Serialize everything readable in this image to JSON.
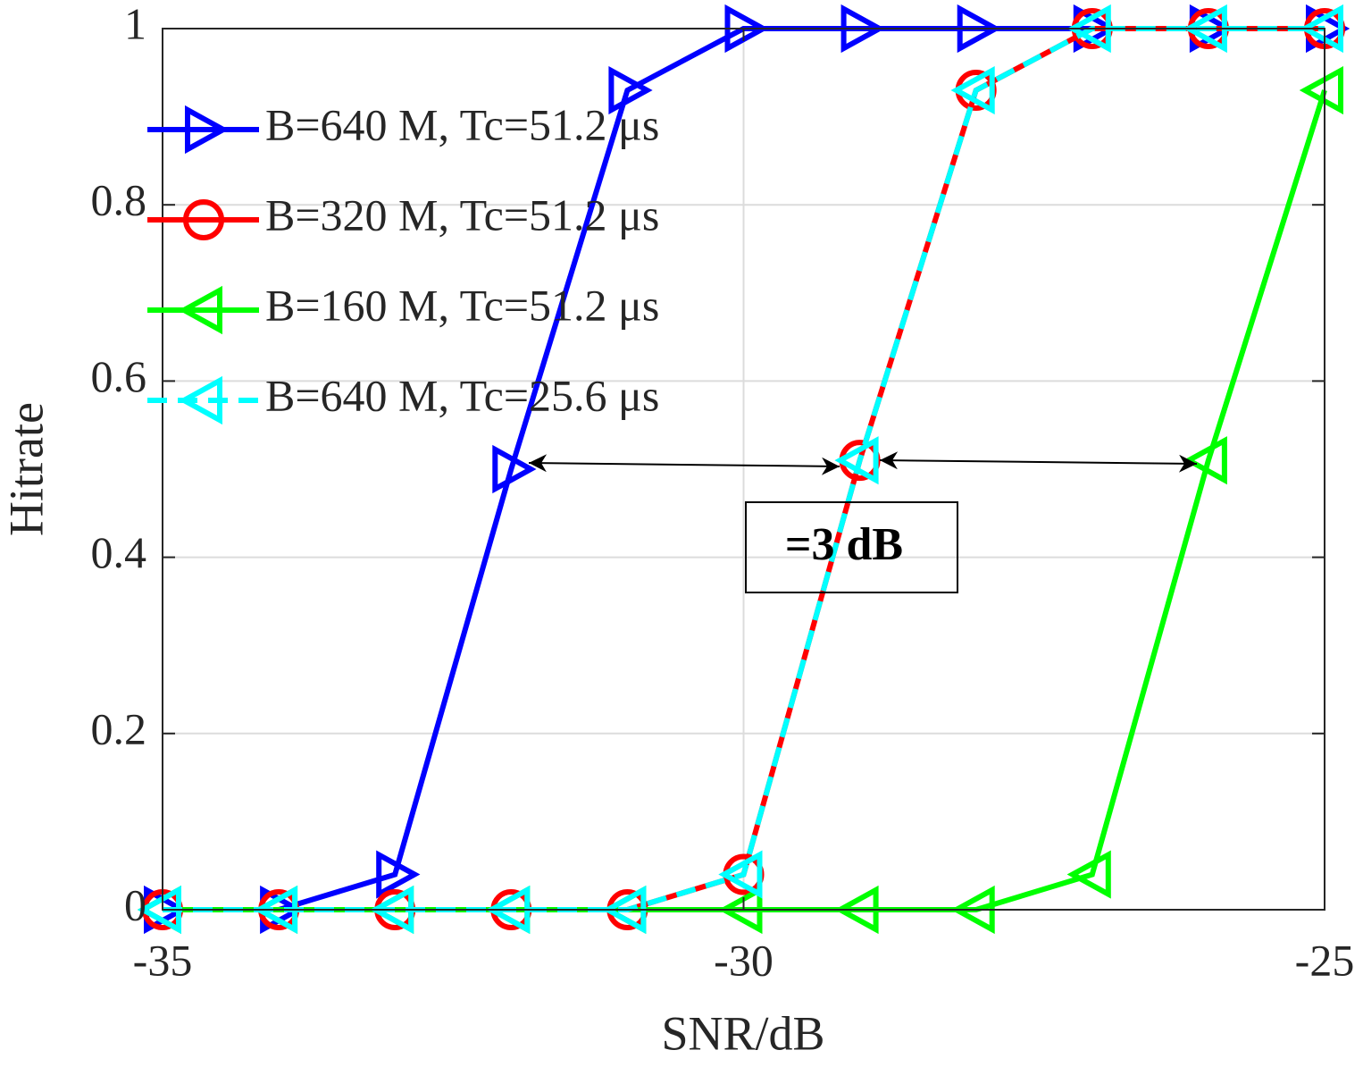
{
  "chart_data": {
    "type": "line",
    "xlabel": "SNR/dB",
    "ylabel": "Hitrate",
    "x": [
      -35,
      -34,
      -33,
      -32,
      -31,
      -30,
      -29,
      -28,
      -27,
      -26,
      -25
    ],
    "series": [
      {
        "name": "B=640 M, Tc=51.2 μs",
        "color": "#0000ff",
        "marker": "triangle-right",
        "linestyle": "solid",
        "values": [
          0,
          0,
          0.04,
          0.5,
          0.93,
          1,
          1,
          1,
          1,
          1,
          1
        ]
      },
      {
        "name": "B=320 M, Tc=51.2 μs",
        "color": "#ff0000",
        "marker": "circle",
        "linestyle": "solid",
        "values": [
          0,
          0,
          0,
          0,
          0,
          0.04,
          0.51,
          0.93,
          1,
          1,
          1
        ]
      },
      {
        "name": "B=160 M, Tc=51.2 μs",
        "color": "#00ff00",
        "marker": "triangle-left",
        "linestyle": "solid",
        "values": [
          0,
          0,
          0,
          0,
          0,
          0,
          0,
          0,
          0.04,
          0.51,
          0.93
        ]
      },
      {
        "name": "B=640 M, Tc=25.6 μs",
        "color": "#00ffff",
        "marker": "triangle-left",
        "linestyle": "dashed",
        "values": [
          0,
          0,
          0,
          0,
          0,
          0.04,
          0.51,
          0.93,
          1,
          1,
          1
        ]
      }
    ],
    "xlim": [
      -35,
      -25
    ],
    "xticks": [
      -35,
      -30,
      -25
    ],
    "ylim": [
      0,
      1
    ],
    "yticks": [
      0,
      0.2,
      0.4,
      0.6,
      0.8,
      1
    ],
    "grid": true,
    "legend": "upper left",
    "annotation": "=3 dB"
  }
}
